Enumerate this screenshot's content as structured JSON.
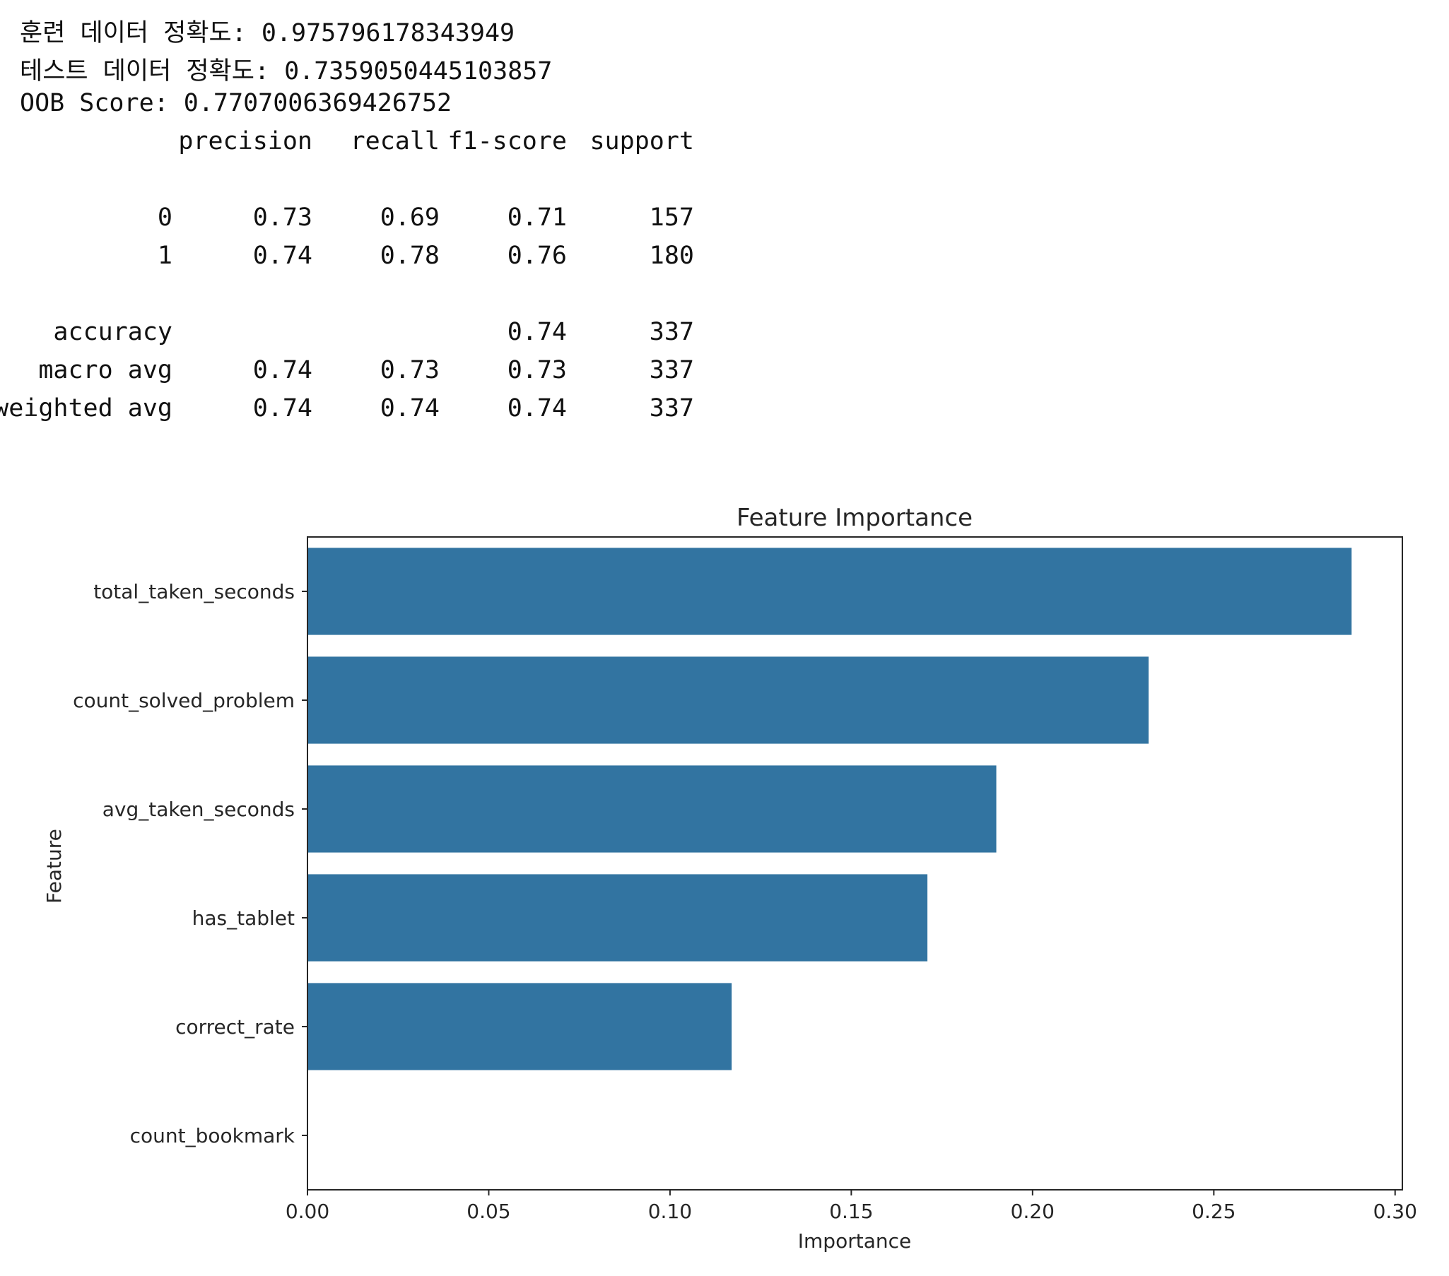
{
  "output": {
    "lines": [
      "훈련 데이터 정확도: 0.975796178343949",
      "테스트 데이터 정확도: 0.7359050445103857",
      "OOB Score: 0.7707006369426752"
    ],
    "report": {
      "headers": [
        "precision",
        "recall",
        "f1-score",
        "support"
      ],
      "rows": [
        {
          "label": "0",
          "precision": "0.73",
          "recall": "0.69",
          "f1": "0.71",
          "support": "157"
        },
        {
          "label": "1",
          "precision": "0.74",
          "recall": "0.78",
          "f1": "0.76",
          "support": "180"
        },
        {
          "label": "accuracy",
          "precision": "",
          "recall": "",
          "f1": "0.74",
          "support": "337"
        },
        {
          "label": "macro avg",
          "precision": "0.74",
          "recall": "0.73",
          "f1": "0.73",
          "support": "337"
        },
        {
          "label": "weighted avg",
          "precision": "0.74",
          "recall": "0.74",
          "f1": "0.74",
          "support": "337"
        }
      ]
    }
  },
  "chart_data": {
    "type": "bar",
    "orientation": "horizontal",
    "title": "Feature Importance",
    "xlabel": "Importance",
    "ylabel": "Feature",
    "categories": [
      "total_taken_seconds",
      "count_solved_problem",
      "avg_taken_seconds",
      "has_tablet",
      "correct_rate",
      "count_bookmark"
    ],
    "values": [
      0.288,
      0.232,
      0.19,
      0.171,
      0.117,
      0.0
    ],
    "xlim": [
      0,
      0.302
    ],
    "xticks": [
      "0.00",
      "0.05",
      "0.10",
      "0.15",
      "0.20",
      "0.25",
      "0.30"
    ],
    "grid": false,
    "bar_color": "#3274a1"
  }
}
